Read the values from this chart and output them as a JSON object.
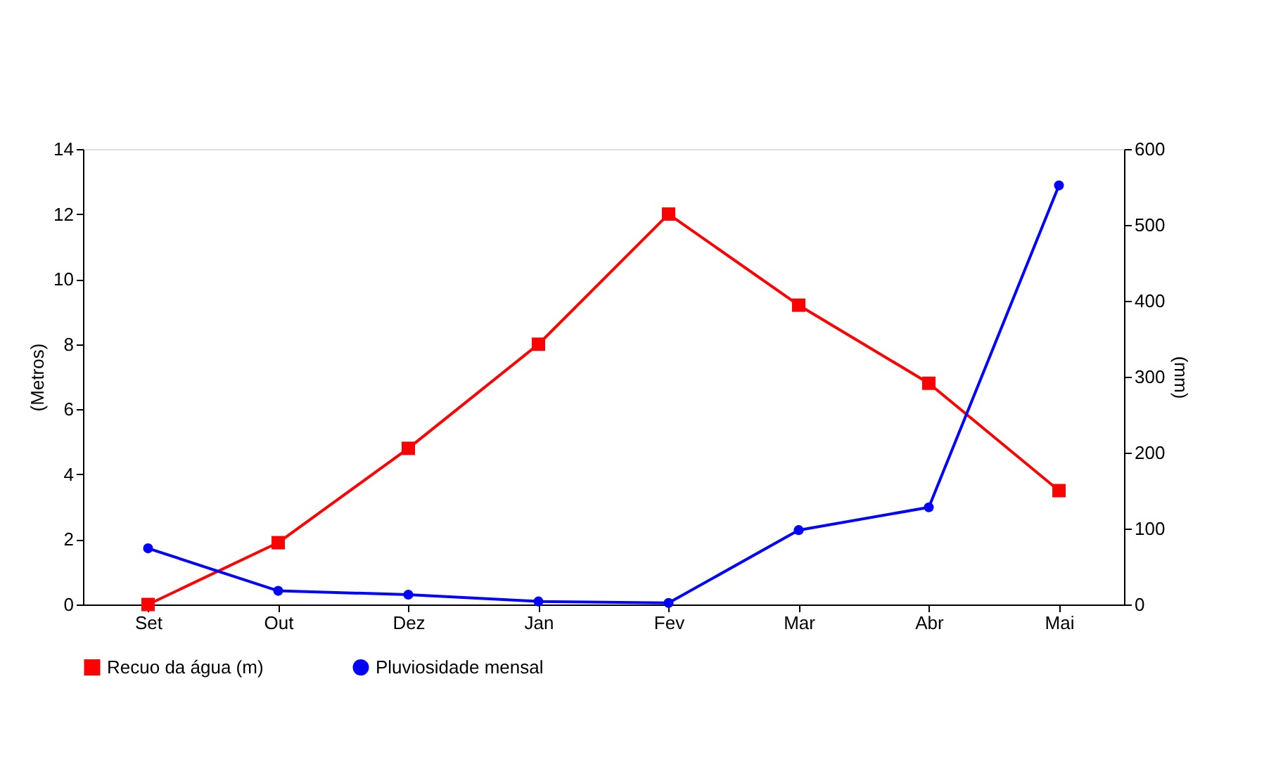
{
  "chart_data": {
    "type": "line",
    "categories": [
      "Set",
      "Out",
      "Dez",
      "Jan",
      "Fev",
      "Mar",
      "Abr",
      "Mai"
    ],
    "ylabel": "(Metros)",
    "y2label": "(mm)",
    "ylim": [
      0,
      14
    ],
    "yticks": [
      0,
      2,
      4,
      6,
      8,
      10,
      12,
      14
    ],
    "y2lim": [
      0,
      600
    ],
    "y2ticks": [
      0,
      100,
      200,
      300,
      400,
      500,
      600
    ],
    "series": [
      {
        "name": "Recuo da água (m)",
        "color": "#ff0000",
        "marker": "square",
        "values": [
          0,
          1.9,
          4.8,
          8,
          12,
          9.2,
          6.8,
          3.5
        ]
      },
      {
        "name": "Pluviosidade mensal",
        "color": "#0000ff",
        "marker": "circle",
        "axis": "y2",
        "values": [
          74,
          18,
          13,
          4,
          2,
          98,
          128,
          552
        ]
      }
    ],
    "grid": false,
    "legend": "bottom"
  }
}
